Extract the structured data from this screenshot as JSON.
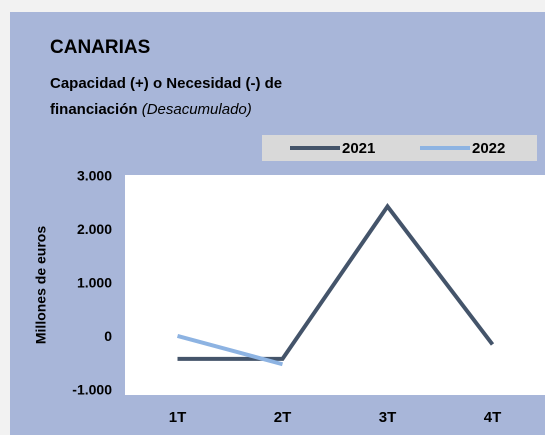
{
  "chart_data": {
    "type": "line",
    "title": "CANARIAS",
    "subtitle": [
      "Capacidad (+) o Necesidad (-) de",
      "financiación"
    ],
    "subtitle_note": "(Desacumulado)",
    "ylabel": "Millones de euros",
    "categories": [
      "1T",
      "2T",
      "3T",
      "4T"
    ],
    "series": [
      {
        "name": "2021",
        "color": "#44546a",
        "values": [
          -400,
          -400,
          2450,
          -130
        ]
      },
      {
        "name": "2022",
        "color": "#8db3e2",
        "values": [
          30,
          -500,
          null,
          null
        ]
      }
    ],
    "ylim": [
      -1000,
      3000
    ],
    "yticks": [
      {
        "value": -1000,
        "label": "-1.000"
      },
      0,
      {
        "value": 1000,
        "label": "1.000"
      },
      {
        "value": 2000,
        "label": "2.000"
      },
      {
        "value": 3000,
        "label": "3.000"
      }
    ],
    "grid": false,
    "legend": "top-right"
  }
}
